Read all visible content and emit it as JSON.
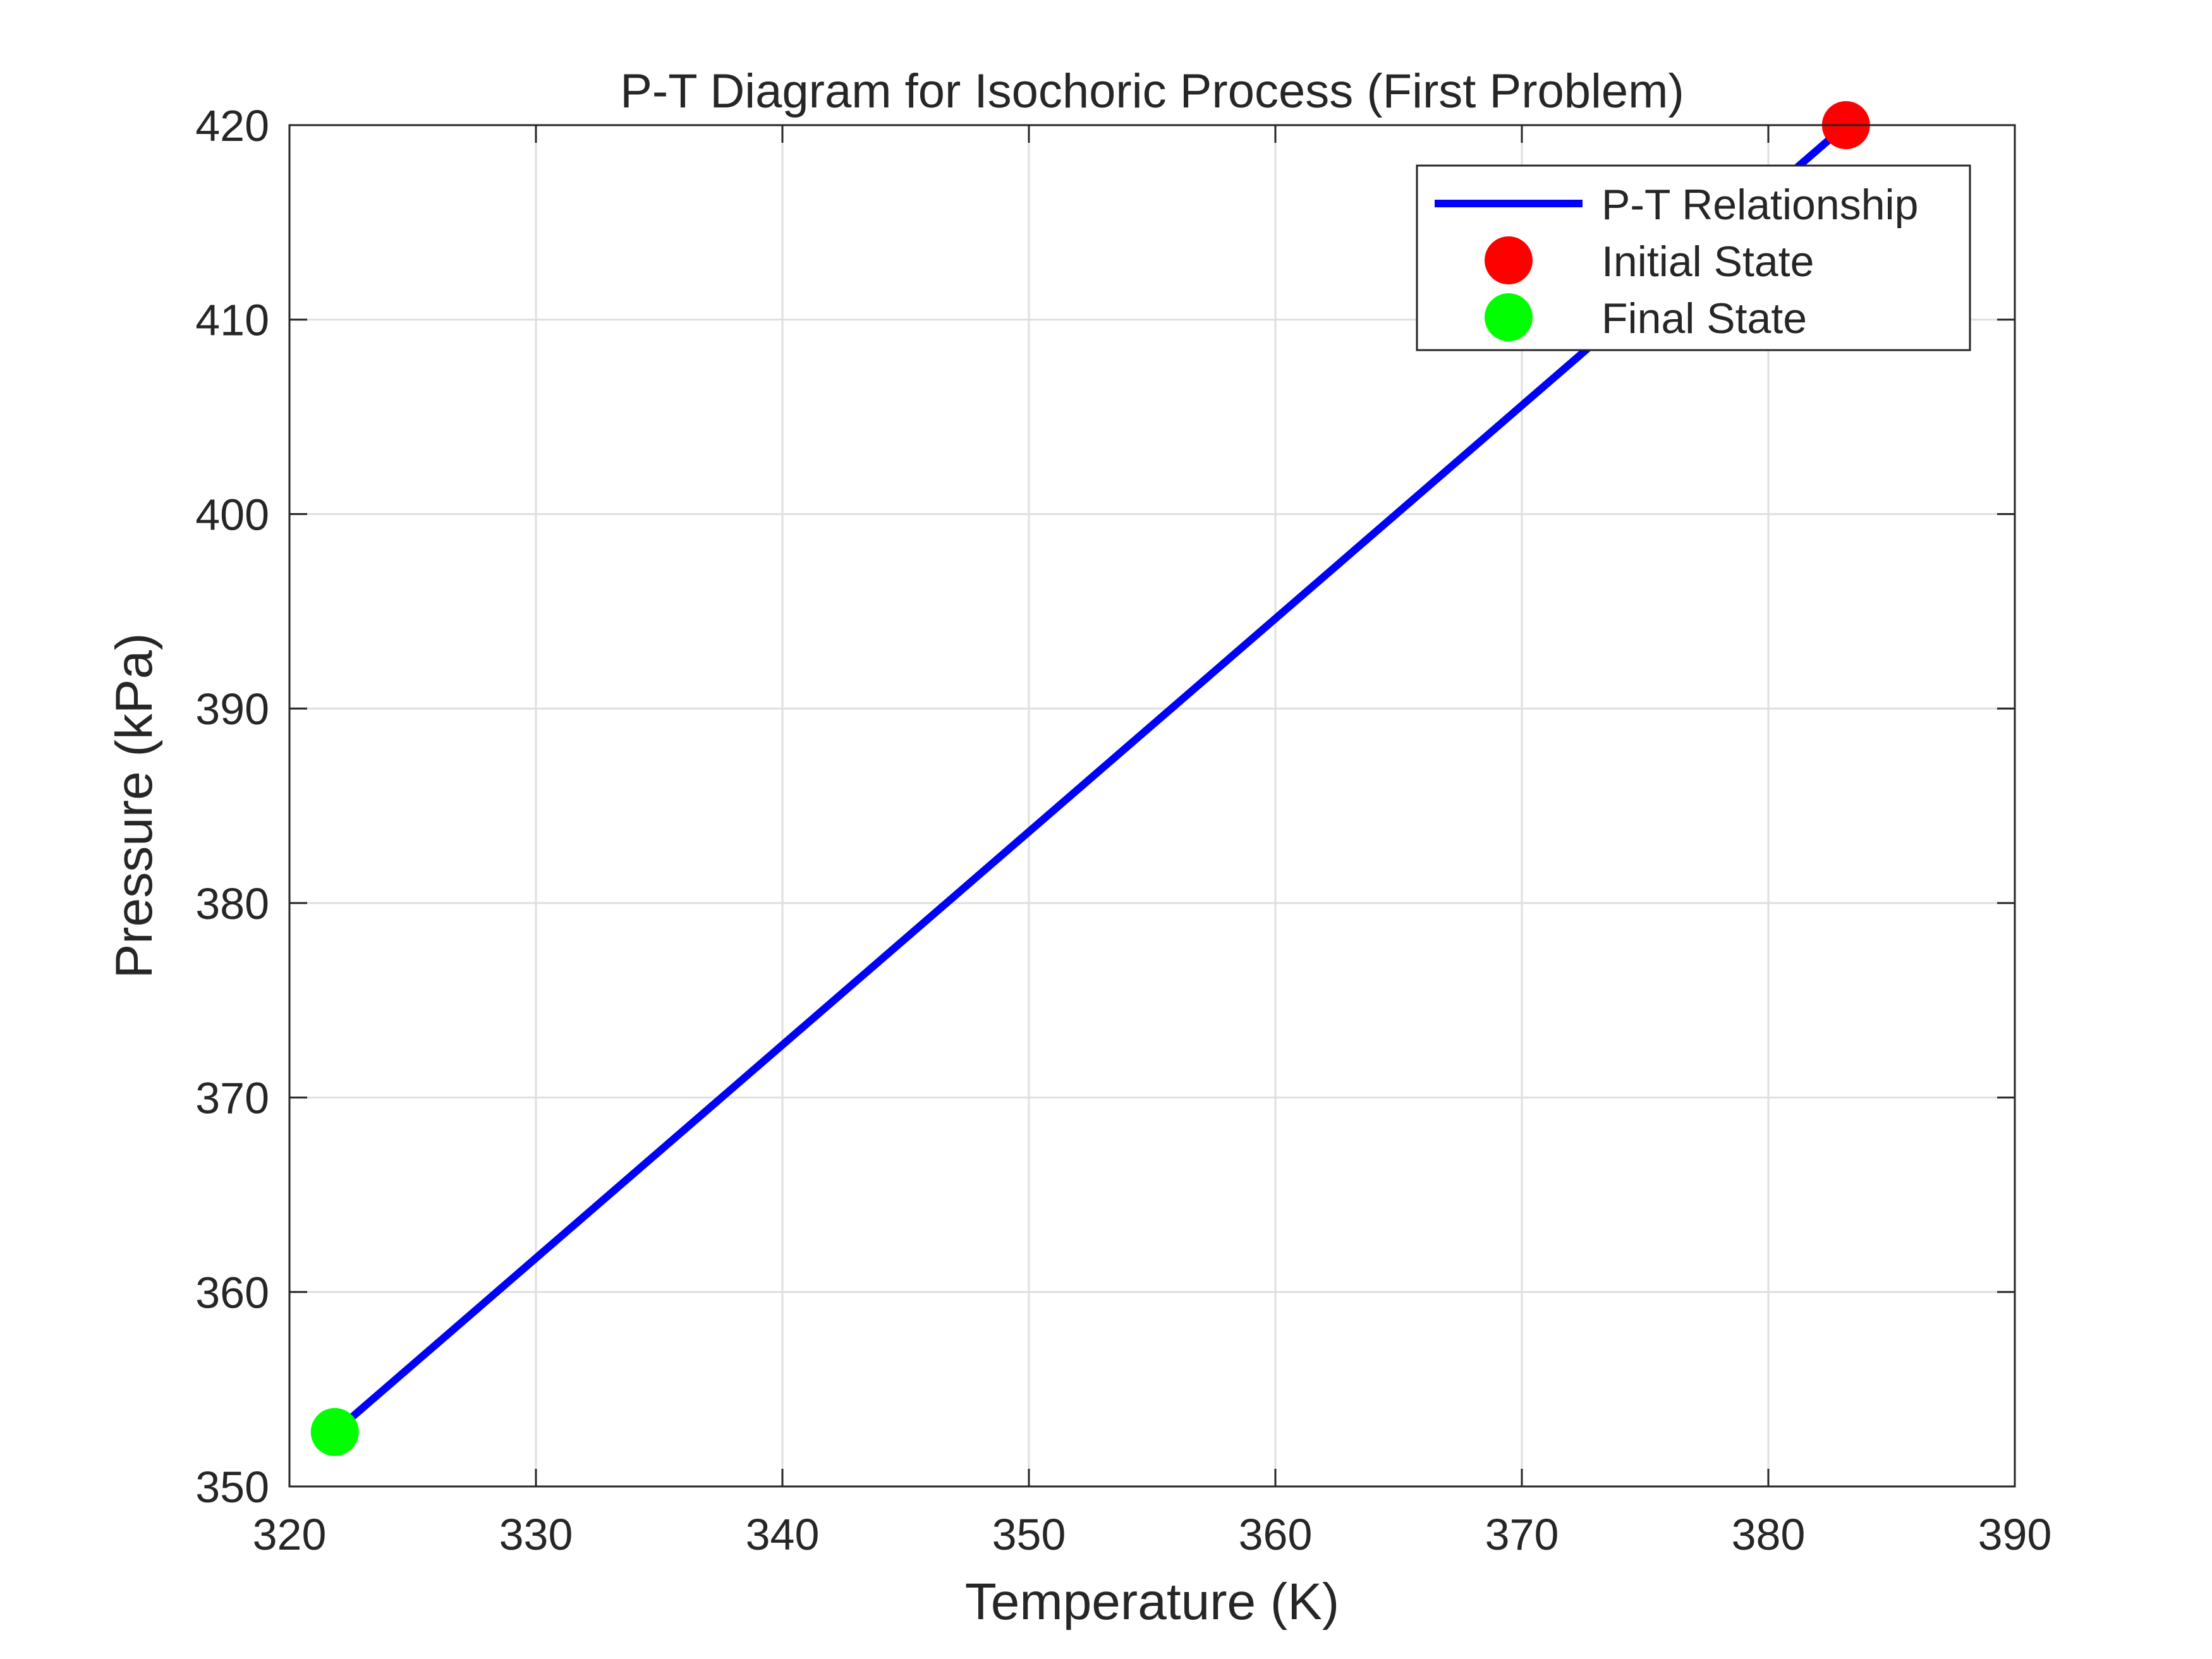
{
  "chart_data": {
    "type": "line",
    "title": "P-T Diagram for Isochoric Process (First Problem)",
    "xlabel": "Temperature (K)",
    "ylabel": "Pressure (kPa)",
    "xlim": [
      320,
      390
    ],
    "ylim": [
      350,
      420
    ],
    "xticks": [
      "320",
      "330",
      "340",
      "350",
      "360",
      "370",
      "380",
      "390"
    ],
    "yticks": [
      "350",
      "360",
      "370",
      "380",
      "390",
      "400",
      "410",
      "420"
    ],
    "grid": true,
    "legend_position": "top-right",
    "series": [
      {
        "name": "P-T Relationship",
        "kind": "line",
        "color": "#0000ff",
        "x": [
          383.15,
          321.84
        ],
        "y": [
          420,
          352.8
        ]
      },
      {
        "name": "Initial State",
        "kind": "marker",
        "color": "#ff0000",
        "x": [
          383.15
        ],
        "y": [
          420
        ]
      },
      {
        "name": "Final State",
        "kind": "marker",
        "color": "#00ff00",
        "x": [
          321.84
        ],
        "y": [
          352.8
        ]
      }
    ]
  }
}
